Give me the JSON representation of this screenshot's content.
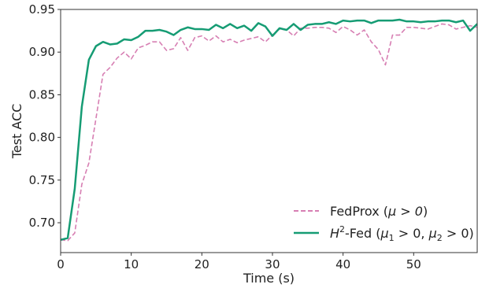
{
  "chart_data": {
    "type": "line",
    "title": "",
    "xlabel": "Time (s)",
    "ylabel": "Test ACC",
    "xlim": [
      0,
      59
    ],
    "ylim": [
      0.665,
      0.95
    ],
    "xticks": [
      0,
      10,
      20,
      30,
      40,
      50
    ],
    "xtick_labels": [
      "0",
      "10",
      "20",
      "30",
      "40",
      "50"
    ],
    "yticks": [
      0.7,
      0.75,
      0.8,
      0.85,
      0.9,
      0.95
    ],
    "ytick_labels": [
      "0.70",
      "0.75",
      "0.80",
      "0.85",
      "0.90",
      "0.95"
    ],
    "grid": false,
    "legend_position": "lower-right",
    "legend": {
      "fedprox": {
        "name": "FedProx",
        "math": "μ > 0"
      },
      "h2fed": {
        "name": "-Fed",
        "base": "H",
        "sup": "2",
        "math_a": "μ",
        "sub_a": "1",
        "rel_a": " > 0, ",
        "math_b": "μ",
        "sub_b": "2",
        "rel_b": " > 0"
      }
    },
    "series": [
      {
        "key": "fedprox",
        "color": "#d77fb3",
        "style": "dashed",
        "x": [
          0,
          1,
          2,
          3,
          4,
          5,
          6,
          7,
          8,
          9,
          10,
          11,
          12,
          13,
          14,
          15,
          16,
          17,
          18,
          19,
          20,
          21,
          22,
          23,
          24,
          25,
          26,
          27,
          28,
          29,
          30,
          31,
          32,
          33,
          34,
          35,
          36,
          37,
          38,
          39,
          40,
          41,
          42,
          43,
          44,
          45,
          46,
          47,
          48,
          49,
          50,
          51,
          52,
          53,
          54,
          55,
          56,
          57,
          58,
          59
        ],
        "values": [
          0.68,
          0.679,
          0.688,
          0.745,
          0.77,
          0.822,
          0.874,
          0.882,
          0.893,
          0.9,
          0.892,
          0.905,
          0.908,
          0.912,
          0.912,
          0.902,
          0.904,
          0.917,
          0.902,
          0.917,
          0.919,
          0.913,
          0.919,
          0.912,
          0.915,
          0.911,
          0.914,
          0.916,
          0.918,
          0.912,
          0.92,
          0.927,
          0.926,
          0.919,
          0.928,
          0.928,
          0.929,
          0.929,
          0.928,
          0.923,
          0.93,
          0.926,
          0.92,
          0.926,
          0.912,
          0.903,
          0.885,
          0.92,
          0.92,
          0.929,
          0.929,
          0.928,
          0.927,
          0.93,
          0.933,
          0.932,
          0.927,
          0.929,
          0.931,
          0.929
        ]
      },
      {
        "key": "h2fed",
        "color": "#169c74",
        "style": "solid",
        "x": [
          0,
          1,
          2,
          3,
          4,
          5,
          6,
          7,
          8,
          9,
          10,
          11,
          12,
          13,
          14,
          15,
          16,
          17,
          18,
          19,
          20,
          21,
          22,
          23,
          24,
          25,
          26,
          27,
          28,
          29,
          30,
          31,
          32,
          33,
          34,
          35,
          36,
          37,
          38,
          39,
          40,
          41,
          42,
          43,
          44,
          45,
          46,
          47,
          48,
          49,
          50,
          51,
          52,
          53,
          54,
          55,
          56,
          57,
          58,
          59
        ],
        "values": [
          0.68,
          0.682,
          0.74,
          0.836,
          0.891,
          0.907,
          0.912,
          0.909,
          0.91,
          0.915,
          0.914,
          0.918,
          0.925,
          0.925,
          0.926,
          0.924,
          0.92,
          0.926,
          0.929,
          0.927,
          0.927,
          0.926,
          0.932,
          0.928,
          0.933,
          0.928,
          0.931,
          0.925,
          0.934,
          0.93,
          0.919,
          0.928,
          0.926,
          0.933,
          0.926,
          0.932,
          0.933,
          0.933,
          0.935,
          0.933,
          0.937,
          0.936,
          0.937,
          0.937,
          0.934,
          0.937,
          0.937,
          0.937,
          0.938,
          0.936,
          0.936,
          0.935,
          0.936,
          0.936,
          0.937,
          0.937,
          0.935,
          0.937,
          0.925,
          0.933
        ]
      }
    ]
  }
}
